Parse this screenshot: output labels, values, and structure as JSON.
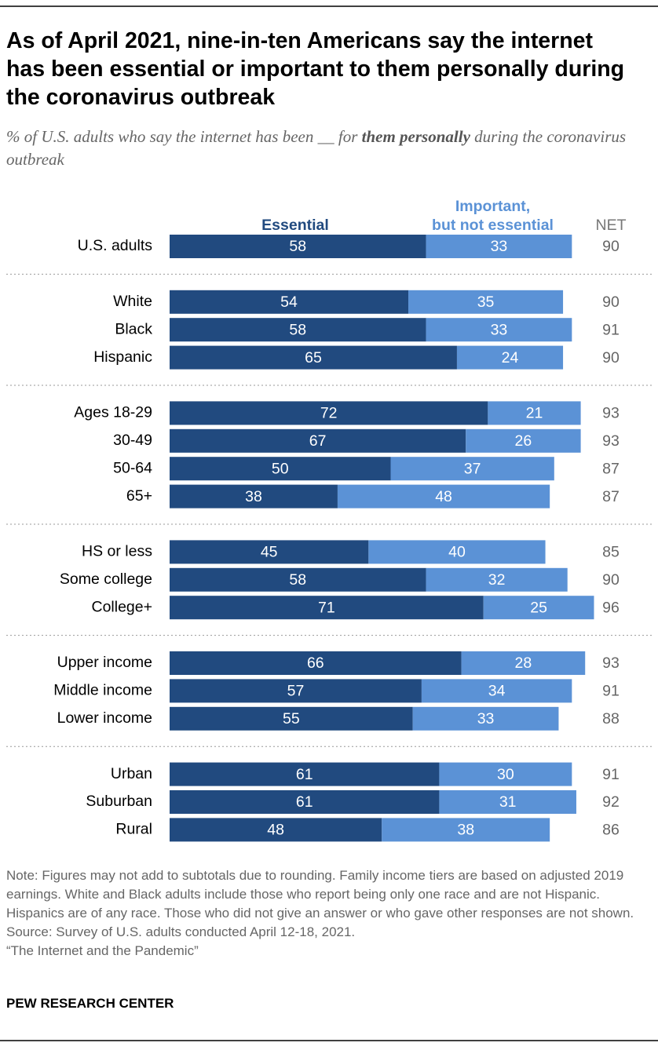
{
  "chart_data": {
    "type": "stacked_bar",
    "title": "As of April 2021, nine-in-ten Americans say the internet has been essential or important to them personally during the coronavirus outbreak",
    "subtitle": [
      "% of U.S. adults who say the internet has been __ for ",
      "them personally",
      " during the coronavirus outbreak"
    ],
    "categories": [
      "U.S. adults",
      "White",
      "Black",
      "Hispanic",
      "Ages 18-29",
      "30-49",
      "50-64",
      "65+",
      "HS or less",
      "Some college",
      "College+",
      "Upper income",
      "Middle income",
      "Lower income",
      "Urban",
      "Suburban",
      "Rural"
    ],
    "series": [
      {
        "name": "Essential",
        "color": "#214a7f",
        "values": [
          58,
          54,
          58,
          65,
          72,
          67,
          50,
          38,
          45,
          58,
          71,
          66,
          57,
          55,
          61,
          61,
          48
        ]
      },
      {
        "name": "Important,\nbut not essential",
        "color": "#5b92d6",
        "values": [
          33,
          35,
          33,
          24,
          21,
          26,
          37,
          48,
          40,
          32,
          25,
          28,
          34,
          33,
          30,
          31,
          38
        ]
      }
    ],
    "net": {
      "name": "NET",
      "values": [
        90,
        90,
        91,
        90,
        93,
        93,
        87,
        87,
        85,
        90,
        96,
        93,
        91,
        88,
        91,
        92,
        86
      ]
    },
    "note": "Note: Figures may not add to subtotals due to rounding. Family income tiers are based on adjusted 2019 earnings. White and Black adults include those who report being only one race and are not Hispanic. Hispanics are of any race. Those who did not give an answer or who gave other responses are not shown.",
    "source": "Source: Survey of U.S. adults conducted April 12-18, 2021.",
    "report": "“The Internet and the Pandemic”",
    "credit": "PEW RESEARCH CENTER"
  }
}
